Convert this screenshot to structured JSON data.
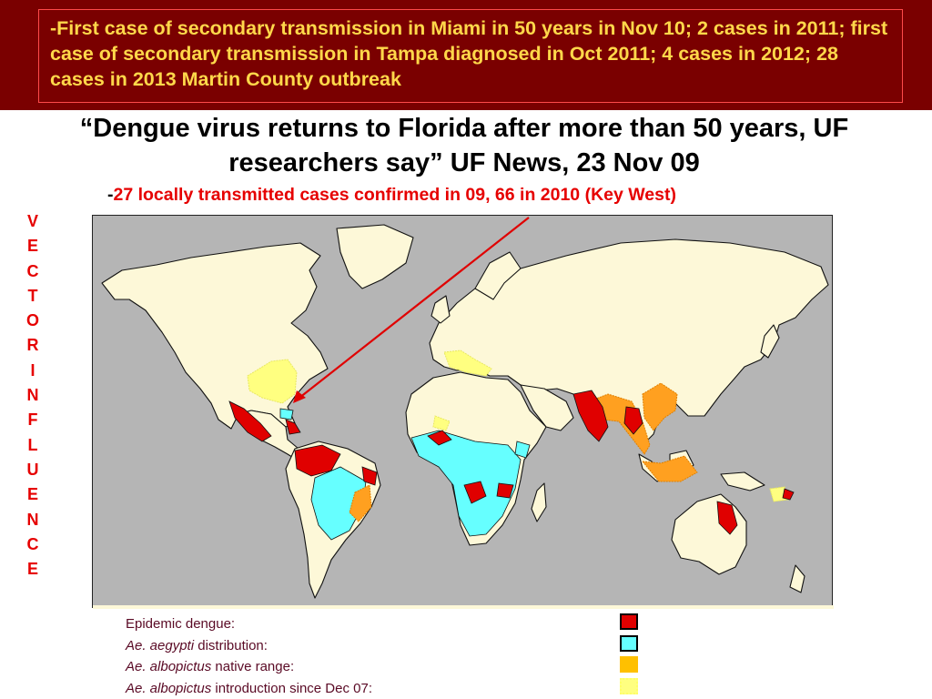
{
  "banner": {
    "text": "-First case of secondary transmission in Miami in 50 years in Nov 10; 2 cases in 2011; first case of secondary transmission in Tampa diagnosed in Oct 2011; 4 cases in 2012; 28 cases in 2013 Martin County outbreak"
  },
  "headline": {
    "text": "“Dengue virus returns to Florida after more than 50 years, UF researchers say” UF News, 23 Nov 09"
  },
  "subline": {
    "dash": "-",
    "text": "27 locally transmitted cases confirmed in 09, 66 in 2010 (Key West)"
  },
  "side_word": [
    "V",
    "E",
    "C",
    "T",
    "O",
    "R",
    "I",
    "N",
    "F",
    "L",
    "U",
    "E",
    "N",
    "C",
    "E"
  ],
  "legend": {
    "epidemic": "Epidemic dengue:",
    "aegypti_italic": "Ae. aegypti",
    "aegypti_rest": " distribution:",
    "native_italic": "Ae. albopictus",
    "native_rest": " native range:",
    "intro_italic": "Ae. albopictus",
    "intro_rest": " introduction since Dec 07:"
  },
  "colors": {
    "banner_bg": "#7a0000",
    "banner_text": "#ffd84a",
    "accent_red": "#e60000",
    "ocean": "#b5b5b5",
    "land": "#fdf8d8",
    "epidemic": "#e00000",
    "aegypti": "#66ffff",
    "albopictus_native": "#ffc000",
    "albopictus_intro": "#ffff80",
    "legend_text": "#5a0a25"
  }
}
